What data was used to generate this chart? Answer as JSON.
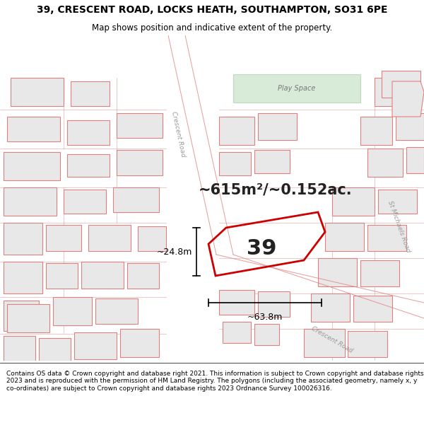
{
  "title_line1": "39, CRESCENT ROAD, LOCKS HEATH, SOUTHAMPTON, SO31 6PE",
  "title_line2": "Map shows position and indicative extent of the property.",
  "footer_text": "Contains OS data © Crown copyright and database right 2021. This information is subject to Crown copyright and database rights 2023 and is reproduced with the permission of HM Land Registry. The polygons (including the associated geometry, namely x, y co-ordinates) are subject to Crown copyright and database rights 2023 Ordnance Survey 100026316.",
  "map_bg": "#ffffff",
  "plot_edge": "#cc0000",
  "plot_lw": 2.0,
  "building_fill": "#e8e8e8",
  "building_edge": "#e08080",
  "building_lw": 0.8,
  "road_fill": "#ffffff",
  "play_fill": "#d8ead8",
  "play_edge": "#c0d8c0",
  "label_39": "39",
  "area_text": "~615m²/~0.152ac.",
  "dim_width": "~63.8m",
  "dim_height": "~24.8m",
  "play_space": "Play Space",
  "road_name_crescent_top": "Crescent Road",
  "road_name_crescent_bot": "Crescent Road",
  "road_name_st_michaels": "St Michaels Road",
  "title_fontsize": 10,
  "subtitle_fontsize": 8.5,
  "footer_fontsize": 6.5,
  "area_fontsize": 15,
  "label39_fontsize": 22,
  "dim_fontsize": 9
}
